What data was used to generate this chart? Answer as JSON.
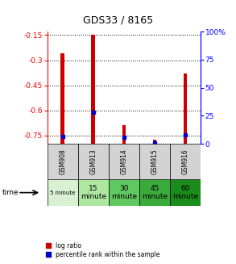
{
  "title": "GDS33 / 8165",
  "samples": [
    "GSM908",
    "GSM913",
    "GSM914",
    "GSM915",
    "GSM916"
  ],
  "time_labels": [
    "5 minute",
    "15\nminute",
    "30\nminute",
    "45\nminute",
    "60\nminute"
  ],
  "time_colors": [
    "#d9f0d3",
    "#aee8a0",
    "#60c860",
    "#3aaa3a",
    "#1a8c1a"
  ],
  "log_ratios": [
    -0.26,
    -0.15,
    -0.69,
    -0.775,
    -0.38
  ],
  "percentile_ranks": [
    7,
    28,
    6,
    1,
    8
  ],
  "ylim_left": [
    -0.8,
    -0.13
  ],
  "yticks_left": [
    -0.75,
    -0.6,
    -0.45,
    -0.3,
    -0.15
  ],
  "yticks_right": [
    0,
    25,
    50,
    75,
    100
  ],
  "bar_color": "#cc0000",
  "percentile_color": "#0000cc",
  "sample_bg": "#d3d3d3",
  "legend_red": "#cc0000",
  "legend_blue": "#0000cc",
  "bar_width": 0.12
}
